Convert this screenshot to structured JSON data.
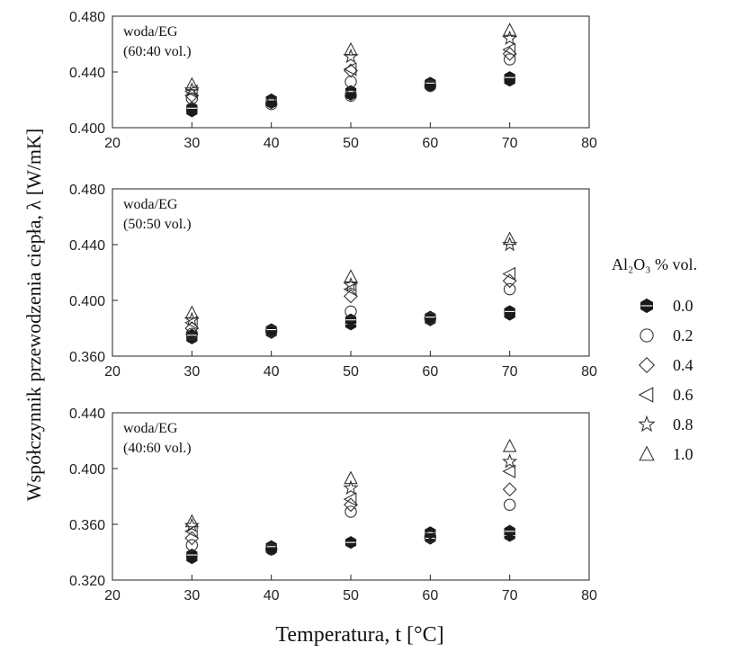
{
  "chart_data": {
    "type": "scatter",
    "xlabel": "Temperatura, t [°C]",
    "ylabel": "Współczynnik przewodzenia ciepła, λ [W/mK]",
    "legend": {
      "title": "Al₂O₃ % vol.",
      "placement": "right",
      "entries": [
        {
          "label": "0.0",
          "marker": "filled-hexagon"
        },
        {
          "label": "0.2",
          "marker": "circle"
        },
        {
          "label": "0.4",
          "marker": "diamond"
        },
        {
          "label": "0.6",
          "marker": "triangle-left"
        },
        {
          "label": "0.8",
          "marker": "star"
        },
        {
          "label": "1.0",
          "marker": "triangle-up"
        }
      ]
    },
    "panels": [
      {
        "annotation": [
          "woda/EG",
          "(60:40 vol.)"
        ],
        "xlim": [
          20,
          80
        ],
        "ylim": [
          0.4,
          0.48
        ],
        "xticks": [
          "20",
          "30",
          "40",
          "50",
          "60",
          "70",
          "80"
        ],
        "yticks": [
          "0.400",
          "0.440",
          "0.480"
        ],
        "series": [
          {
            "name": "0.0",
            "points": [
              [
                30,
                0.412
              ],
              [
                30,
                0.414
              ],
              [
                40,
                0.418
              ],
              [
                40,
                0.42
              ],
              [
                50,
                0.424
              ],
              [
                50,
                0.426
              ],
              [
                60,
                0.43
              ],
              [
                60,
                0.432
              ],
              [
                70,
                0.434
              ],
              [
                70,
                0.436
              ]
            ]
          },
          {
            "name": "0.2",
            "points": [
              [
                30,
                0.421
              ],
              [
                40,
                0.417
              ],
              [
                50,
                0.423
              ],
              [
                50,
                0.433
              ],
              [
                60,
                0.43
              ],
              [
                70,
                0.449
              ]
            ]
          },
          {
            "name": "0.4",
            "points": [
              [
                30,
                0.423
              ],
              [
                50,
                0.441
              ],
              [
                70,
                0.453
              ]
            ]
          },
          {
            "name": "0.6",
            "points": [
              [
                30,
                0.426
              ],
              [
                50,
                0.442
              ],
              [
                70,
                0.456
              ]
            ]
          },
          {
            "name": "0.8",
            "points": [
              [
                30,
                0.427
              ],
              [
                50,
                0.451
              ],
              [
                70,
                0.464
              ]
            ]
          },
          {
            "name": "1.0",
            "points": [
              [
                30,
                0.431
              ],
              [
                50,
                0.456
              ],
              [
                70,
                0.47
              ]
            ]
          }
        ]
      },
      {
        "annotation": [
          "woda/EG",
          "(50:50 vol.)"
        ],
        "xlim": [
          20,
          80
        ],
        "ylim": [
          0.36,
          0.48
        ],
        "xticks": [
          "20",
          "30",
          "40",
          "50",
          "60",
          "70",
          "80"
        ],
        "yticks": [
          "0.360",
          "0.400",
          "0.440",
          "0.480"
        ],
        "series": [
          {
            "name": "0.0",
            "points": [
              [
                30,
                0.373
              ],
              [
                30,
                0.375
              ],
              [
                40,
                0.377
              ],
              [
                40,
                0.379
              ],
              [
                50,
                0.383
              ],
              [
                50,
                0.386
              ],
              [
                60,
                0.386
              ],
              [
                60,
                0.388
              ],
              [
                70,
                0.39
              ],
              [
                70,
                0.392
              ]
            ]
          },
          {
            "name": "0.2",
            "points": [
              [
                30,
                0.376
              ],
              [
                40,
                0.378
              ],
              [
                50,
                0.392
              ],
              [
                60,
                0.387
              ],
              [
                70,
                0.408
              ]
            ]
          },
          {
            "name": "0.4",
            "points": [
              [
                30,
                0.38
              ],
              [
                50,
                0.403
              ],
              [
                70,
                0.414
              ]
            ]
          },
          {
            "name": "0.6",
            "points": [
              [
                30,
                0.384
              ],
              [
                50,
                0.408
              ],
              [
                70,
                0.419
              ]
            ]
          },
          {
            "name": "0.8",
            "points": [
              [
                30,
                0.386
              ],
              [
                50,
                0.411
              ],
              [
                70,
                0.44
              ]
            ]
          },
          {
            "name": "1.0",
            "points": [
              [
                30,
                0.391
              ],
              [
                50,
                0.417
              ],
              [
                70,
                0.444
              ]
            ]
          }
        ]
      },
      {
        "annotation": [
          "woda/EG",
          "(40:60 vol.)"
        ],
        "xlim": [
          20,
          80
        ],
        "ylim": [
          0.32,
          0.44
        ],
        "xticks": [
          "20",
          "30",
          "40",
          "50",
          "60",
          "70",
          "80"
        ],
        "yticks": [
          "0.320",
          "0.360",
          "0.400",
          "0.440"
        ],
        "series": [
          {
            "name": "0.0",
            "points": [
              [
                30,
                0.336
              ],
              [
                30,
                0.338
              ],
              [
                40,
                0.342
              ],
              [
                40,
                0.344
              ],
              [
                50,
                0.347
              ],
              [
                60,
                0.35
              ],
              [
                60,
                0.354
              ],
              [
                70,
                0.352
              ],
              [
                70,
                0.355
              ]
            ]
          },
          {
            "name": "0.2",
            "points": [
              [
                30,
                0.345
              ],
              [
                40,
                0.342
              ],
              [
                50,
                0.369
              ],
              [
                60,
                0.351
              ],
              [
                70,
                0.374
              ]
            ]
          },
          {
            "name": "0.4",
            "points": [
              [
                30,
                0.35
              ],
              [
                50,
                0.374
              ],
              [
                70,
                0.385
              ]
            ]
          },
          {
            "name": "0.6",
            "points": [
              [
                30,
                0.355
              ],
              [
                50,
                0.378
              ],
              [
                70,
                0.398
              ]
            ]
          },
          {
            "name": "0.8",
            "points": [
              [
                30,
                0.359
              ],
              [
                50,
                0.386
              ],
              [
                70,
                0.405
              ]
            ]
          },
          {
            "name": "1.0",
            "points": [
              [
                30,
                0.362
              ],
              [
                50,
                0.393
              ],
              [
                70,
                0.416
              ]
            ]
          }
        ]
      }
    ]
  }
}
